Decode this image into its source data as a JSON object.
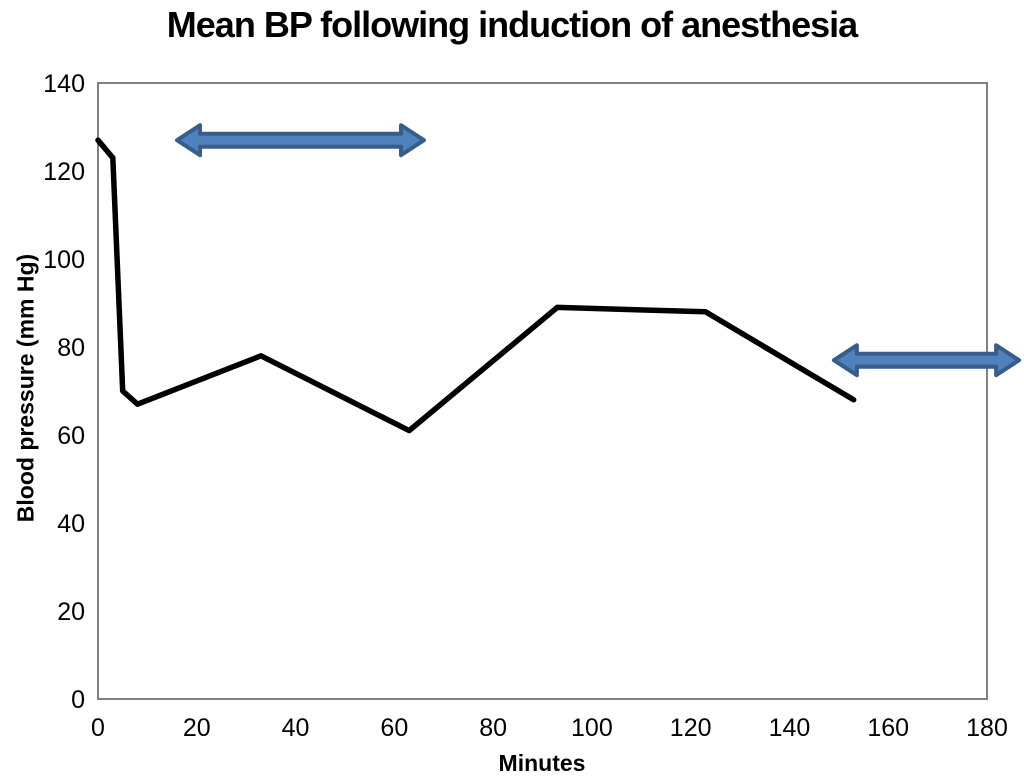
{
  "page": {
    "background": "#ffffff"
  },
  "chart_data": {
    "type": "line",
    "title": "Mean BP following induction of anesthesia",
    "xlabel": "Minutes",
    "ylabel": "Blood pressure (mm Hg)",
    "xlim": [
      0,
      180
    ],
    "ylim": [
      0,
      140
    ],
    "x_ticks": [
      0,
      20,
      40,
      60,
      80,
      100,
      120,
      140,
      160,
      180
    ],
    "y_ticks": [
      0,
      20,
      40,
      60,
      80,
      100,
      120,
      140
    ],
    "grid": false,
    "legend": "none",
    "axis_color": "#808080",
    "text_color": "#000000",
    "series": [
      {
        "name": "Mean BP",
        "color": "#000000",
        "line_width": 5.5,
        "x": [
          0,
          3,
          5,
          8,
          33,
          63,
          93,
          123,
          153
        ],
        "y": [
          127,
          123,
          70,
          67,
          78,
          61,
          89,
          88,
          68
        ]
      }
    ],
    "annotations": [
      {
        "type": "double-arrow",
        "name": "arrow-annotation-1",
        "x_start": 16,
        "x_end": 66,
        "y": 127,
        "fill": "#4F81BD",
        "stroke": "#385D8A"
      },
      {
        "type": "double-arrow",
        "name": "arrow-annotation-2",
        "x_start": 149,
        "x_end": 186.5,
        "y": 77,
        "fill": "#4F81BD",
        "stroke": "#385D8A"
      }
    ]
  }
}
